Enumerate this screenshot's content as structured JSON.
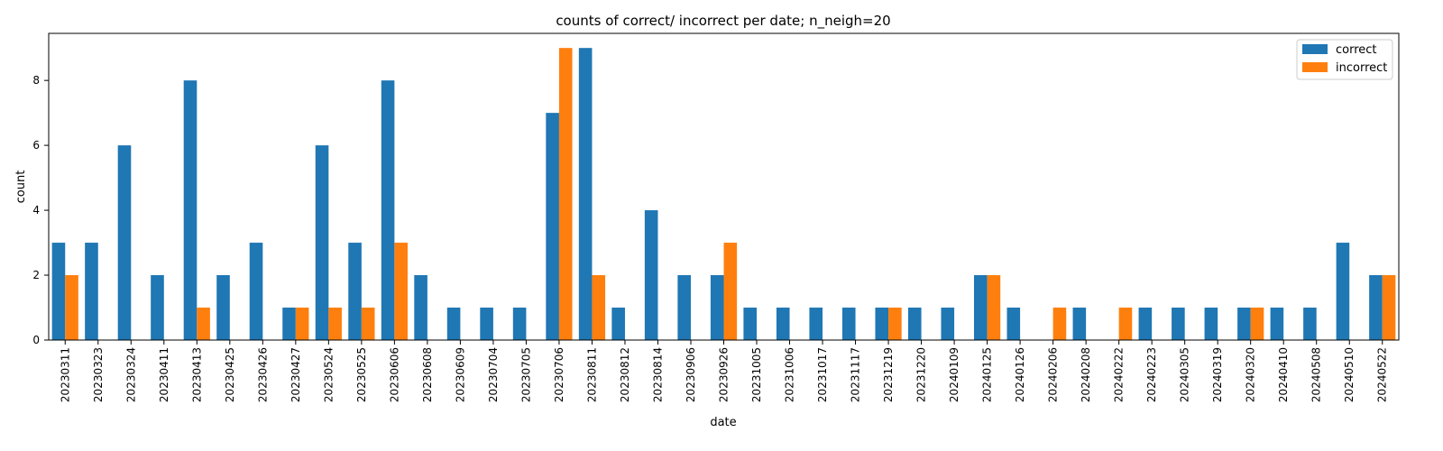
{
  "chart_data": {
    "type": "bar",
    "title": "counts of correct/ incorrect per date; n_neigh=20",
    "xlabel": "date",
    "ylabel": "count",
    "ylim": [
      0,
      9.45
    ],
    "yticks": [
      0,
      2,
      4,
      6,
      8
    ],
    "grid": false,
    "legend_position": "top-right",
    "categories": [
      "20230311",
      "20230323",
      "20230324",
      "20230411",
      "20230413",
      "20230425",
      "20230426",
      "20230427",
      "20230524",
      "20230525",
      "20230606",
      "20230608",
      "20230609",
      "20230704",
      "20230705",
      "20230706",
      "20230811",
      "20230812",
      "20230814",
      "20230906",
      "20230926",
      "20231005",
      "20231006",
      "20231017",
      "20231117",
      "20231219",
      "20231220",
      "20240109",
      "20240125",
      "20240126",
      "20240206",
      "20240208",
      "20240222",
      "20240223",
      "20240305",
      "20240319",
      "20240320",
      "20240410",
      "20240508",
      "20240510",
      "20240522"
    ],
    "series": [
      {
        "name": "correct",
        "color": "#1f77b4",
        "values": [
          3,
          3,
          6,
          2,
          8,
          2,
          3,
          1,
          6,
          3,
          8,
          2,
          1,
          1,
          1,
          7,
          9,
          1,
          4,
          2,
          2,
          1,
          1,
          1,
          1,
          1,
          1,
          1,
          2,
          1,
          0,
          1,
          0,
          1,
          1,
          1,
          1,
          1,
          1,
          3,
          2
        ]
      },
      {
        "name": "incorrect",
        "color": "#ff7f0e",
        "values": [
          2,
          0,
          0,
          0,
          1,
          0,
          0,
          1,
          1,
          1,
          3,
          0,
          0,
          0,
          0,
          9,
          2,
          0,
          0,
          0,
          3,
          0,
          0,
          0,
          0,
          1,
          0,
          0,
          2,
          0,
          1,
          0,
          1,
          0,
          0,
          0,
          1,
          0,
          0,
          0,
          2
        ]
      }
    ]
  }
}
